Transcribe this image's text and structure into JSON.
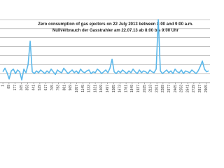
{
  "chart_data": {
    "type": "line",
    "title": "Zero consumption of gas ejectors on 22 July 2013 between 8:00 and 9:00 a.m.",
    "subtitle": "Nullverbrauch der Gasstrahler am 22.07.13 ab 8:00 bis 9:00 Uhr",
    "color": "#5cb8ea",
    "grid": true,
    "x": [
      1,
      31,
      61,
      91,
      121,
      151,
      181,
      211,
      241,
      271,
      301,
      331,
      361,
      391,
      421,
      451,
      481,
      511,
      541,
      571,
      601,
      631,
      661,
      691,
      721,
      751,
      781,
      811,
      841,
      871,
      901,
      931,
      961,
      991,
      1021,
      1051,
      1081,
      1111,
      1141,
      1171,
      1201,
      1231,
      1261,
      1291,
      1321,
      1351,
      1381,
      1411,
      1441,
      1471,
      1501,
      1531,
      1561,
      1591,
      1621,
      1651,
      1681,
      1711,
      1741,
      1771,
      1801,
      1831,
      1861,
      1891,
      1921,
      1951,
      1981,
      2011,
      2041,
      2071,
      2101,
      2131,
      2161,
      2191,
      2221,
      2251,
      2281,
      2311,
      2341,
      2371,
      2401,
      2431,
      2461,
      2491,
      2521,
      2551,
      2581,
      2611,
      2641,
      2671,
      2701,
      2731,
      2761,
      2791,
      2821,
      2851,
      2881,
      2911,
      2941
    ],
    "values": [
      1.2,
      1.6,
      1.1,
      0.4,
      1.3,
      1.5,
      1.0,
      1.4,
      1.2,
      0.3,
      1.5,
      1.1,
      2.0,
      4.6,
      1.2,
      1.0,
      1.3,
      1.1,
      1.4,
      1.2,
      1.0,
      1.3,
      1.1,
      1.5,
      1.2,
      0.9,
      1.4,
      1.2,
      1.1,
      1.6,
      1.3,
      1.0,
      1.2,
      1.4,
      1.1,
      1.3,
      1.0,
      1.5,
      1.2,
      1.1,
      1.3,
      1.4,
      1.0,
      1.2,
      1.1,
      1.5,
      1.3,
      1.0,
      1.2,
      1.4,
      1.1,
      1.6,
      2.6,
      1.2,
      1.0,
      1.3,
      1.1,
      1.4,
      1.2,
      1.0,
      1.3,
      1.1,
      1.5,
      1.2,
      1.0,
      1.4,
      1.1,
      1.3,
      1.2,
      1.0,
      1.4,
      1.2,
      1.1,
      1.5,
      7.0,
      1.3,
      1.0,
      1.2,
      1.4,
      1.1,
      1.3,
      1.0,
      1.5,
      1.2,
      1.1,
      1.4,
      1.0,
      1.3,
      1.2,
      1.1,
      1.4,
      1.2,
      1.0,
      1.3,
      1.8,
      2.4,
      1.5,
      1.2,
      1.3
    ],
    "xlim": [
      -40,
      2960
    ],
    "xticks": [
      1,
      89,
      177,
      265,
      353,
      441,
      529,
      617,
      705,
      793,
      881,
      969,
      1057,
      1145,
      1233,
      1321,
      1409,
      1497,
      1585,
      1673,
      1761,
      1849,
      1937,
      2025,
      2113,
      2201,
      2289,
      2377,
      2465,
      2553,
      2641,
      2729,
      2817,
      2905
    ],
    "ylim": [
      0,
      7
    ],
    "yticks": [
      0,
      1,
      2,
      3,
      4,
      5,
      6,
      7
    ]
  }
}
